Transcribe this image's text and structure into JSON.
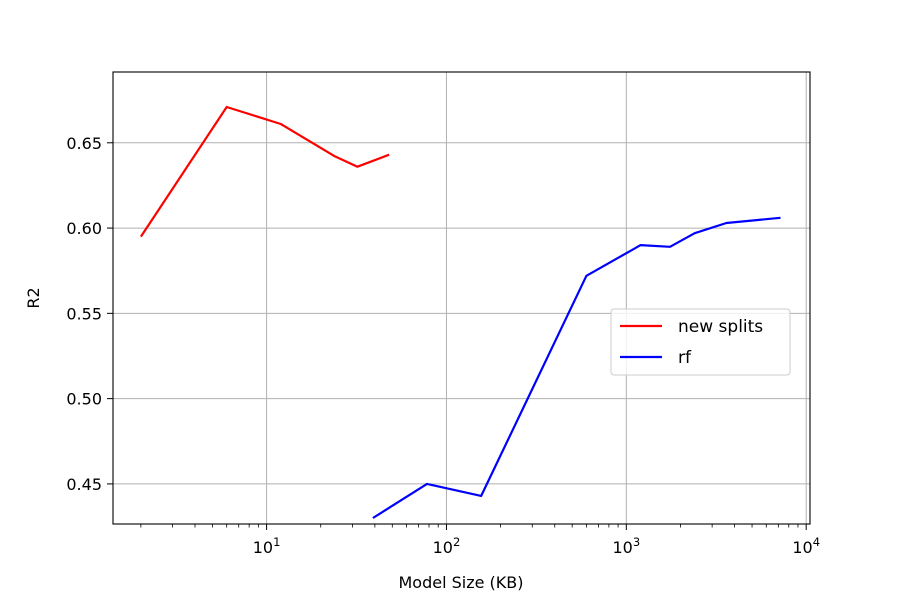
{
  "chart_data": {
    "type": "line",
    "title": "",
    "xlabel": "Model Size (KB)",
    "ylabel": "R2",
    "xscale": "log",
    "xlim": [
      1.4,
      10500
    ],
    "ylim": [
      0.4265,
      0.6915
    ],
    "grid": true,
    "legend_position": "center-right",
    "x_ticks": [
      {
        "value": 10,
        "base": "10",
        "exp": "1"
      },
      {
        "value": 100,
        "base": "10",
        "exp": "2"
      },
      {
        "value": 1000,
        "base": "10",
        "exp": "3"
      },
      {
        "value": 10000,
        "base": "10",
        "exp": "4"
      }
    ],
    "y_ticks": [
      {
        "value": 0.45,
        "label": "0.45"
      },
      {
        "value": 0.5,
        "label": "0.50"
      },
      {
        "value": 0.55,
        "label": "0.55"
      },
      {
        "value": 0.6,
        "label": "0.60"
      },
      {
        "value": 0.65,
        "label": "0.65"
      }
    ],
    "series": [
      {
        "name": "new splits",
        "color": "#ff0000",
        "x": [
          2,
          6,
          12,
          24,
          32,
          48
        ],
        "y": [
          0.595,
          0.671,
          0.661,
          0.642,
          0.636,
          0.643
        ]
      },
      {
        "name": "rf",
        "color": "#0000ff",
        "x": [
          39,
          78,
          156,
          600,
          1200,
          1750,
          2400,
          3600,
          7200
        ],
        "y": [
          0.43,
          0.45,
          0.443,
          0.572,
          0.59,
          0.589,
          0.597,
          0.603,
          0.606
        ]
      }
    ]
  }
}
